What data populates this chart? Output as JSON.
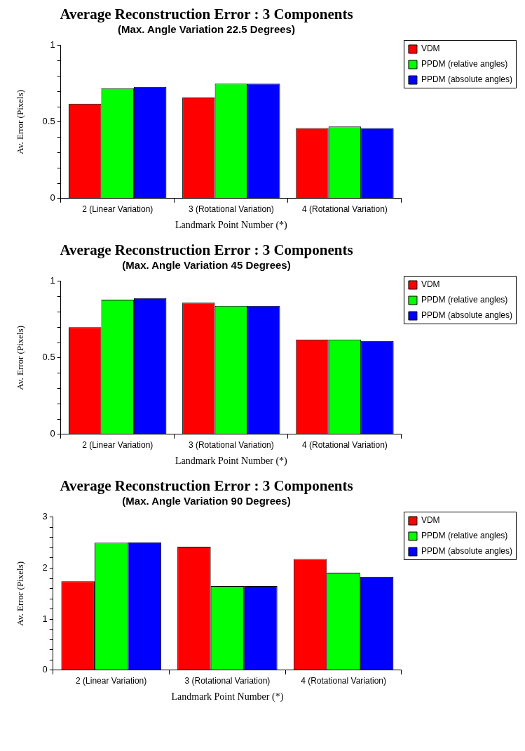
{
  "chart_data": [
    {
      "type": "bar",
      "title": "Average Reconstruction Error : 3 Components",
      "subtitle": "(Max. Angle Variation 22.5 Degrees)",
      "xlabel": "Landmark Point Number (*)",
      "ylabel": "Av. Error (Pixels)",
      "categories": [
        "2 (Linear Variation)",
        "3 (Rotational Variation)",
        "4 (Rotational Variation)"
      ],
      "series": [
        {
          "name": "VDM",
          "color": "#ff0000",
          "values": [
            0.62,
            0.66,
            0.46
          ]
        },
        {
          "name": "PPDM (relative angles)",
          "color": "#00ff00",
          "values": [
            0.72,
            0.75,
            0.47
          ]
        },
        {
          "name": "PPDM (absolute angles)",
          "color": "#0000ff",
          "values": [
            0.73,
            0.75,
            0.46
          ]
        }
      ],
      "ylim": [
        0,
        1
      ],
      "yticks": [
        0,
        {
          "value": 0.1,
          "label": null
        },
        {
          "value": 0.2,
          "label": null
        },
        {
          "value": 0.3,
          "label": null
        },
        {
          "value": 0.4,
          "label": null
        },
        {
          "value": 0.5,
          "label": "0.5"
        },
        {
          "value": 0.6,
          "label": null
        },
        {
          "value": 0.7,
          "label": null
        },
        {
          "value": 0.8,
          "label": null
        },
        {
          "value": 0.9,
          "label": null
        },
        1
      ],
      "grid": false,
      "legend": "top right"
    },
    {
      "type": "bar",
      "title": "Average Reconstruction Error : 3 Components",
      "subtitle": "(Max. Angle Variation 45 Degrees)",
      "xlabel": "Landmark Point Number (*)",
      "ylabel": "Av. Error (Pixels)",
      "categories": [
        "2 (Linear Variation)",
        "3 (Rotational Variation)",
        "4 (Rotational Variation)"
      ],
      "series": [
        {
          "name": "VDM",
          "color": "#ff0000",
          "values": [
            0.7,
            0.86,
            0.62
          ]
        },
        {
          "name": "PPDM (relative angles)",
          "color": "#00ff00",
          "values": [
            0.88,
            0.84,
            0.62
          ]
        },
        {
          "name": "PPDM (absolute angles)",
          "color": "#0000ff",
          "values": [
            0.89,
            0.84,
            0.61
          ]
        }
      ],
      "ylim": [
        0,
        1
      ],
      "yticks": [
        0,
        {
          "value": 0.1,
          "label": null
        },
        {
          "value": 0.2,
          "label": null
        },
        {
          "value": 0.3,
          "label": null
        },
        {
          "value": 0.4,
          "label": null
        },
        {
          "value": 0.5,
          "label": "0.5"
        },
        {
          "value": 0.6,
          "label": null
        },
        {
          "value": 0.7,
          "label": null
        },
        {
          "value": 0.8,
          "label": null
        },
        {
          "value": 0.9,
          "label": null
        },
        1
      ],
      "grid": false,
      "legend": "top right"
    },
    {
      "type": "bar",
      "title": "Average Reconstruction Error : 3 Components",
      "subtitle": "(Max. Angle Variation 90 Degrees)",
      "xlabel": "Landmark Point Number (*)",
      "ylabel": "Av. Error (Pixels)",
      "categories": [
        "2 (Linear Variation)",
        "3 (Rotational Variation)",
        "4 (Rotational Variation)"
      ],
      "series": [
        {
          "name": "VDM",
          "color": "#ff0000",
          "values": [
            1.74,
            2.42,
            2.18
          ]
        },
        {
          "name": "PPDM (relative angles)",
          "color": "#00ff00",
          "values": [
            2.5,
            1.65,
            1.91
          ]
        },
        {
          "name": "PPDM (absolute angles)",
          "color": "#0000ff",
          "values": [
            2.51,
            1.65,
            1.83
          ]
        }
      ],
      "ylim": [
        0,
        3
      ],
      "yticks": [
        0,
        {
          "value": 0.2,
          "label": null
        },
        {
          "value": 0.4,
          "label": null
        },
        {
          "value": 0.6,
          "label": null
        },
        {
          "value": 0.8,
          "label": null
        },
        1,
        {
          "value": 1.2,
          "label": null
        },
        {
          "value": 1.4,
          "label": null
        },
        {
          "value": 1.6,
          "label": null
        },
        {
          "value": 1.8,
          "label": null
        },
        2,
        {
          "value": 2.2,
          "label": null
        },
        {
          "value": 2.4,
          "label": null
        },
        {
          "value": 2.6,
          "label": null
        },
        {
          "value": 2.8,
          "label": null
        },
        3
      ],
      "grid": false,
      "legend": "top right"
    }
  ]
}
